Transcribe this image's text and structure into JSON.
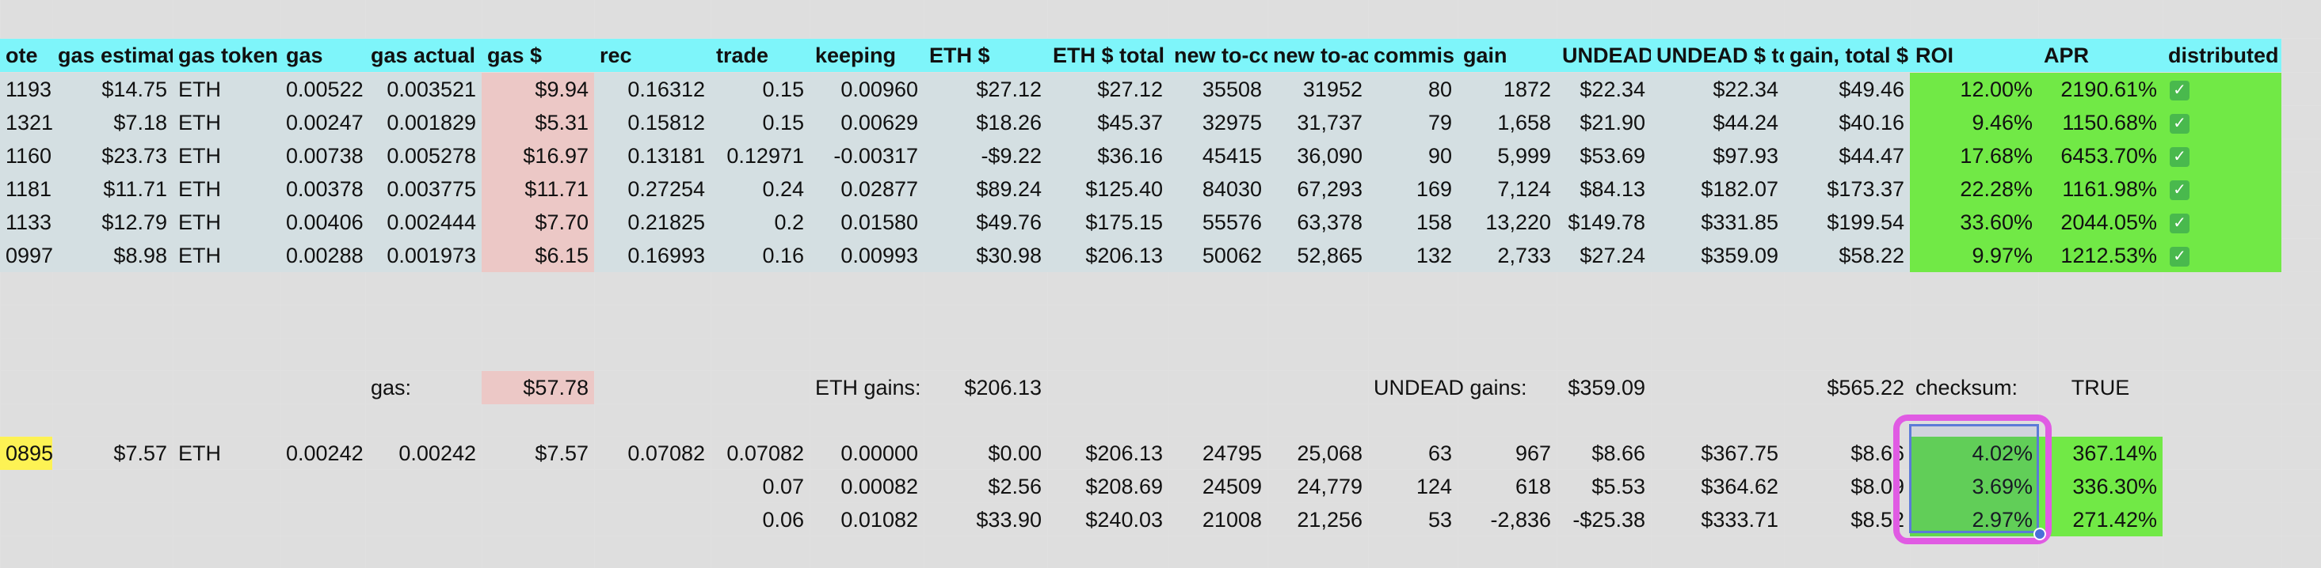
{
  "colors": {
    "header": "#7ef5fa",
    "body_gray": "#d4dfe2",
    "gas_pink": "#ecc8c6",
    "green": "#71e946",
    "green_selected": "#63d94a",
    "yellow": "#fdf254",
    "highlight_ring": "#e05be3",
    "selection_blue": "#5b7bd8"
  },
  "headers": [
    "ote",
    "gas estimat",
    "gas token",
    "gas",
    "gas actual",
    "gas $",
    "rec",
    "trade",
    "keeping",
    "ETH $",
    "ETH $ total",
    "new to-co",
    "new to-ac",
    "commis",
    "gain",
    "UNDEAD",
    "UNDEAD $ to",
    "gain, total $",
    "ROI",
    "APR",
    "distributed"
  ],
  "rows": [
    [
      "1193",
      "$14.75",
      "ETH",
      "0.00522",
      "0.003521",
      "$9.94",
      "0.16312",
      "0.15",
      "0.00960",
      "$27.12",
      "$27.12",
      "35508",
      "31952",
      "80",
      "1872",
      "$22.34",
      "$22.34",
      "$49.46",
      "12.00%",
      "2190.61%",
      "check-icon"
    ],
    [
      "1321",
      "$7.18",
      "ETH",
      "0.00247",
      "0.001829",
      "$5.31",
      "0.15812",
      "0.15",
      "0.00629",
      "$18.26",
      "$45.37",
      "32975",
      "31,737",
      "79",
      "1,658",
      "$21.90",
      "$44.24",
      "$40.16",
      "9.46%",
      "1150.68%",
      "check-icon"
    ],
    [
      "1160",
      "$23.73",
      "ETH",
      "0.00738",
      "0.005278",
      "$16.97",
      "0.13181",
      "0.12971",
      "-0.00317",
      "-$9.22",
      "$36.16",
      "45415",
      "36,090",
      "90",
      "5,999",
      "$53.69",
      "$97.93",
      "$44.47",
      "17.68%",
      "6453.70%",
      "check-icon"
    ],
    [
      "1181",
      "$11.71",
      "ETH",
      "0.00378",
      "0.003775",
      "$11.71",
      "0.27254",
      "0.24",
      "0.02877",
      "$89.24",
      "$125.40",
      "84030",
      "67,293",
      "169",
      "7,124",
      "$84.13",
      "$182.07",
      "$173.37",
      "22.28%",
      "1161.98%",
      "check-icon"
    ],
    [
      "1133",
      "$12.79",
      "ETH",
      "0.00406",
      "0.002444",
      "$7.70",
      "0.21825",
      "0.2",
      "0.01580",
      "$49.76",
      "$175.15",
      "55576",
      "63,378",
      "158",
      "13,220",
      "$149.78",
      "$331.85",
      "$199.54",
      "33.60%",
      "2044.05%",
      "check-icon"
    ],
    [
      "0997",
      "$8.98",
      "ETH",
      "0.00288",
      "0.001973",
      "$6.15",
      "0.16993",
      "0.16",
      "0.00993",
      "$30.98",
      "$206.13",
      "50062",
      "52,865",
      "132",
      "2,733",
      "$27.24",
      "$359.09",
      "$58.22",
      "9.97%",
      "1212.53%",
      "check-icon"
    ]
  ],
  "summary": {
    "gas_label": "gas:",
    "gas_value": "$57.78",
    "eth_gains_label": "ETH gains:",
    "eth_gains_value": "$206.13",
    "undead_gains_label": "UNDEAD gains:",
    "undead_gains_value": "$359.09",
    "total_gain": "$565.22",
    "checksum_label": "checksum:",
    "checksum_value": "TRUE"
  },
  "lower_rows": [
    [
      "0895",
      "$7.57",
      "ETH",
      "0.00242",
      "0.00242",
      "$7.57",
      "0.07082",
      "0.07082",
      "0.00000",
      "$0.00",
      "$206.13",
      "24795",
      "25,068",
      "63",
      "967",
      "$8.66",
      "$367.75",
      "$8.66",
      "4.02%",
      "367.14%",
      ""
    ],
    [
      "",
      "",
      "",
      "",
      "",
      "",
      "",
      "0.07",
      "0.00082",
      "$2.56",
      "$208.69",
      "24509",
      "24,779",
      "124",
      "618",
      "$5.53",
      "$364.62",
      "$8.09",
      "3.69%",
      "336.30%",
      ""
    ],
    [
      "",
      "",
      "",
      "",
      "",
      "",
      "",
      "0.06",
      "0.01082",
      "$33.90",
      "$240.03",
      "21008",
      "21,256",
      "53",
      "-2,836",
      "-$25.38",
      "$333.71",
      "$8.52",
      "2.97%",
      "271.42%",
      ""
    ]
  ]
}
